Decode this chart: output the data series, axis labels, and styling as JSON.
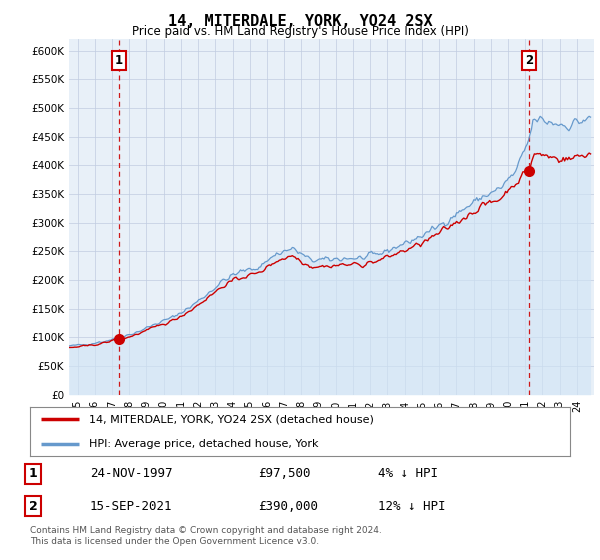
{
  "title": "14, MITERDALE, YORK, YO24 2SX",
  "subtitle": "Price paid vs. HM Land Registry's House Price Index (HPI)",
  "ylim": [
    0,
    620000
  ],
  "xlim": [
    1995.0,
    2025.5
  ],
  "yticks": [
    0,
    50000,
    100000,
    150000,
    200000,
    250000,
    300000,
    350000,
    400000,
    450000,
    500000,
    550000,
    600000
  ],
  "ytick_labels": [
    "£0",
    "£50K",
    "£100K",
    "£150K",
    "£200K",
    "£250K",
    "£300K",
    "£350K",
    "£400K",
    "£450K",
    "£500K",
    "£550K",
    "£600K"
  ],
  "purchase1_x": 1997.9,
  "purchase1_y": 97500,
  "purchase1_label": "1",
  "purchase1_date": "24-NOV-1997",
  "purchase1_price": "£97,500",
  "purchase1_note": "4% ↓ HPI",
  "purchase2_x": 2021.72,
  "purchase2_y": 390000,
  "purchase2_label": "2",
  "purchase2_date": "15-SEP-2021",
  "purchase2_price": "£390,000",
  "purchase2_note": "12% ↓ HPI",
  "line_color_property": "#cc0000",
  "line_color_hpi": "#6699cc",
  "fill_color_hpi": "#d0e4f5",
  "background_color": "#ffffff",
  "plot_bg_color": "#e8f0f8",
  "grid_color": "#c0cce0",
  "legend_label1": "14, MITERDALE, YORK, YO24 2SX (detached house)",
  "legend_label2": "HPI: Average price, detached house, York",
  "footer": "Contains HM Land Registry data © Crown copyright and database right 2024.\nThis data is licensed under the Open Government Licence v3.0."
}
